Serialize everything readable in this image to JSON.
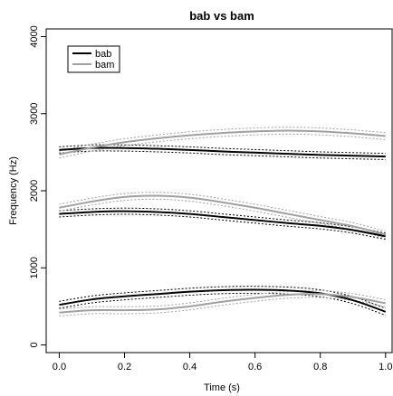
{
  "chart_data": {
    "type": "line",
    "title": "bab vs bam",
    "xlabel": "Time (s)",
    "ylabel": "Frequency (Hz)",
    "xlim": [
      -0.04,
      1.02
    ],
    "ylim": [
      -100,
      4100
    ],
    "x_ticks": [
      "0.0",
      "0.2",
      "0.4",
      "0.6",
      "0.8",
      "1.0"
    ],
    "x_tick_values": [
      0.0,
      0.2,
      0.4,
      0.6,
      0.8,
      1.0
    ],
    "y_ticks": [
      "0",
      "1000",
      "2000",
      "3000",
      "4000"
    ],
    "y_tick_values": [
      0,
      1000,
      2000,
      3000,
      4000
    ],
    "legend": {
      "position": "top-left"
    },
    "grid": false,
    "x": [
      0.0,
      0.1,
      0.2,
      0.3,
      0.4,
      0.5,
      0.6,
      0.7,
      0.8,
      0.9,
      1.0
    ],
    "series": [
      {
        "name": "bab",
        "color": "#000000",
        "lines": [
          {
            "values": [
              2530,
              2555,
              2555,
              2545,
              2530,
              2510,
              2495,
              2480,
              2465,
              2455,
              2445
            ],
            "band": 40
          },
          {
            "values": [
              1700,
              1725,
              1735,
              1725,
              1700,
              1660,
              1620,
              1580,
              1545,
              1490,
              1410
            ],
            "band": 40
          },
          {
            "values": [
              520,
              590,
              630,
              660,
              690,
              710,
              715,
              705,
              670,
              580,
              430
            ],
            "band": 45
          }
        ]
      },
      {
        "name": "bam",
        "color": "#a0a0a0",
        "lines": [
          {
            "values": [
              2470,
              2560,
              2630,
              2680,
              2720,
              2750,
              2770,
              2780,
              2770,
              2745,
              2710
            ],
            "band": 45
          },
          {
            "values": [
              1780,
              1860,
              1920,
              1935,
              1910,
              1850,
              1780,
              1700,
              1620,
              1540,
              1430
            ],
            "band": 45
          },
          {
            "values": [
              420,
              450,
              450,
              460,
              500,
              560,
              610,
              650,
              660,
              620,
              540
            ],
            "band": 45
          }
        ]
      }
    ]
  }
}
